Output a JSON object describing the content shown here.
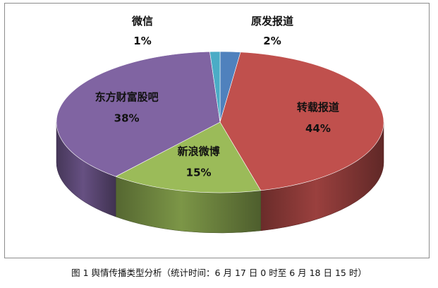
{
  "caption": "图 1 舆情传播类型分析（统计时间：6 月 17 日 0 时至 6 月 18 日 15 时）",
  "chart_data": {
    "type": "pie",
    "style": "3d",
    "slices": [
      {
        "name": "原发报道",
        "value": 2,
        "label": "2%",
        "color": "#4f81bd"
      },
      {
        "name": "转载报道",
        "value": 44,
        "label": "44%",
        "color": "#c0504d"
      },
      {
        "name": "新浪微博",
        "value": 15,
        "label": "15%",
        "color": "#9bbb59"
      },
      {
        "name": "东方财富股吧",
        "value": 38,
        "label": "38%",
        "color": "#8064a2"
      },
      {
        "name": "微信",
        "value": 1,
        "label": "1%",
        "color": "#4bacc6"
      }
    ]
  }
}
